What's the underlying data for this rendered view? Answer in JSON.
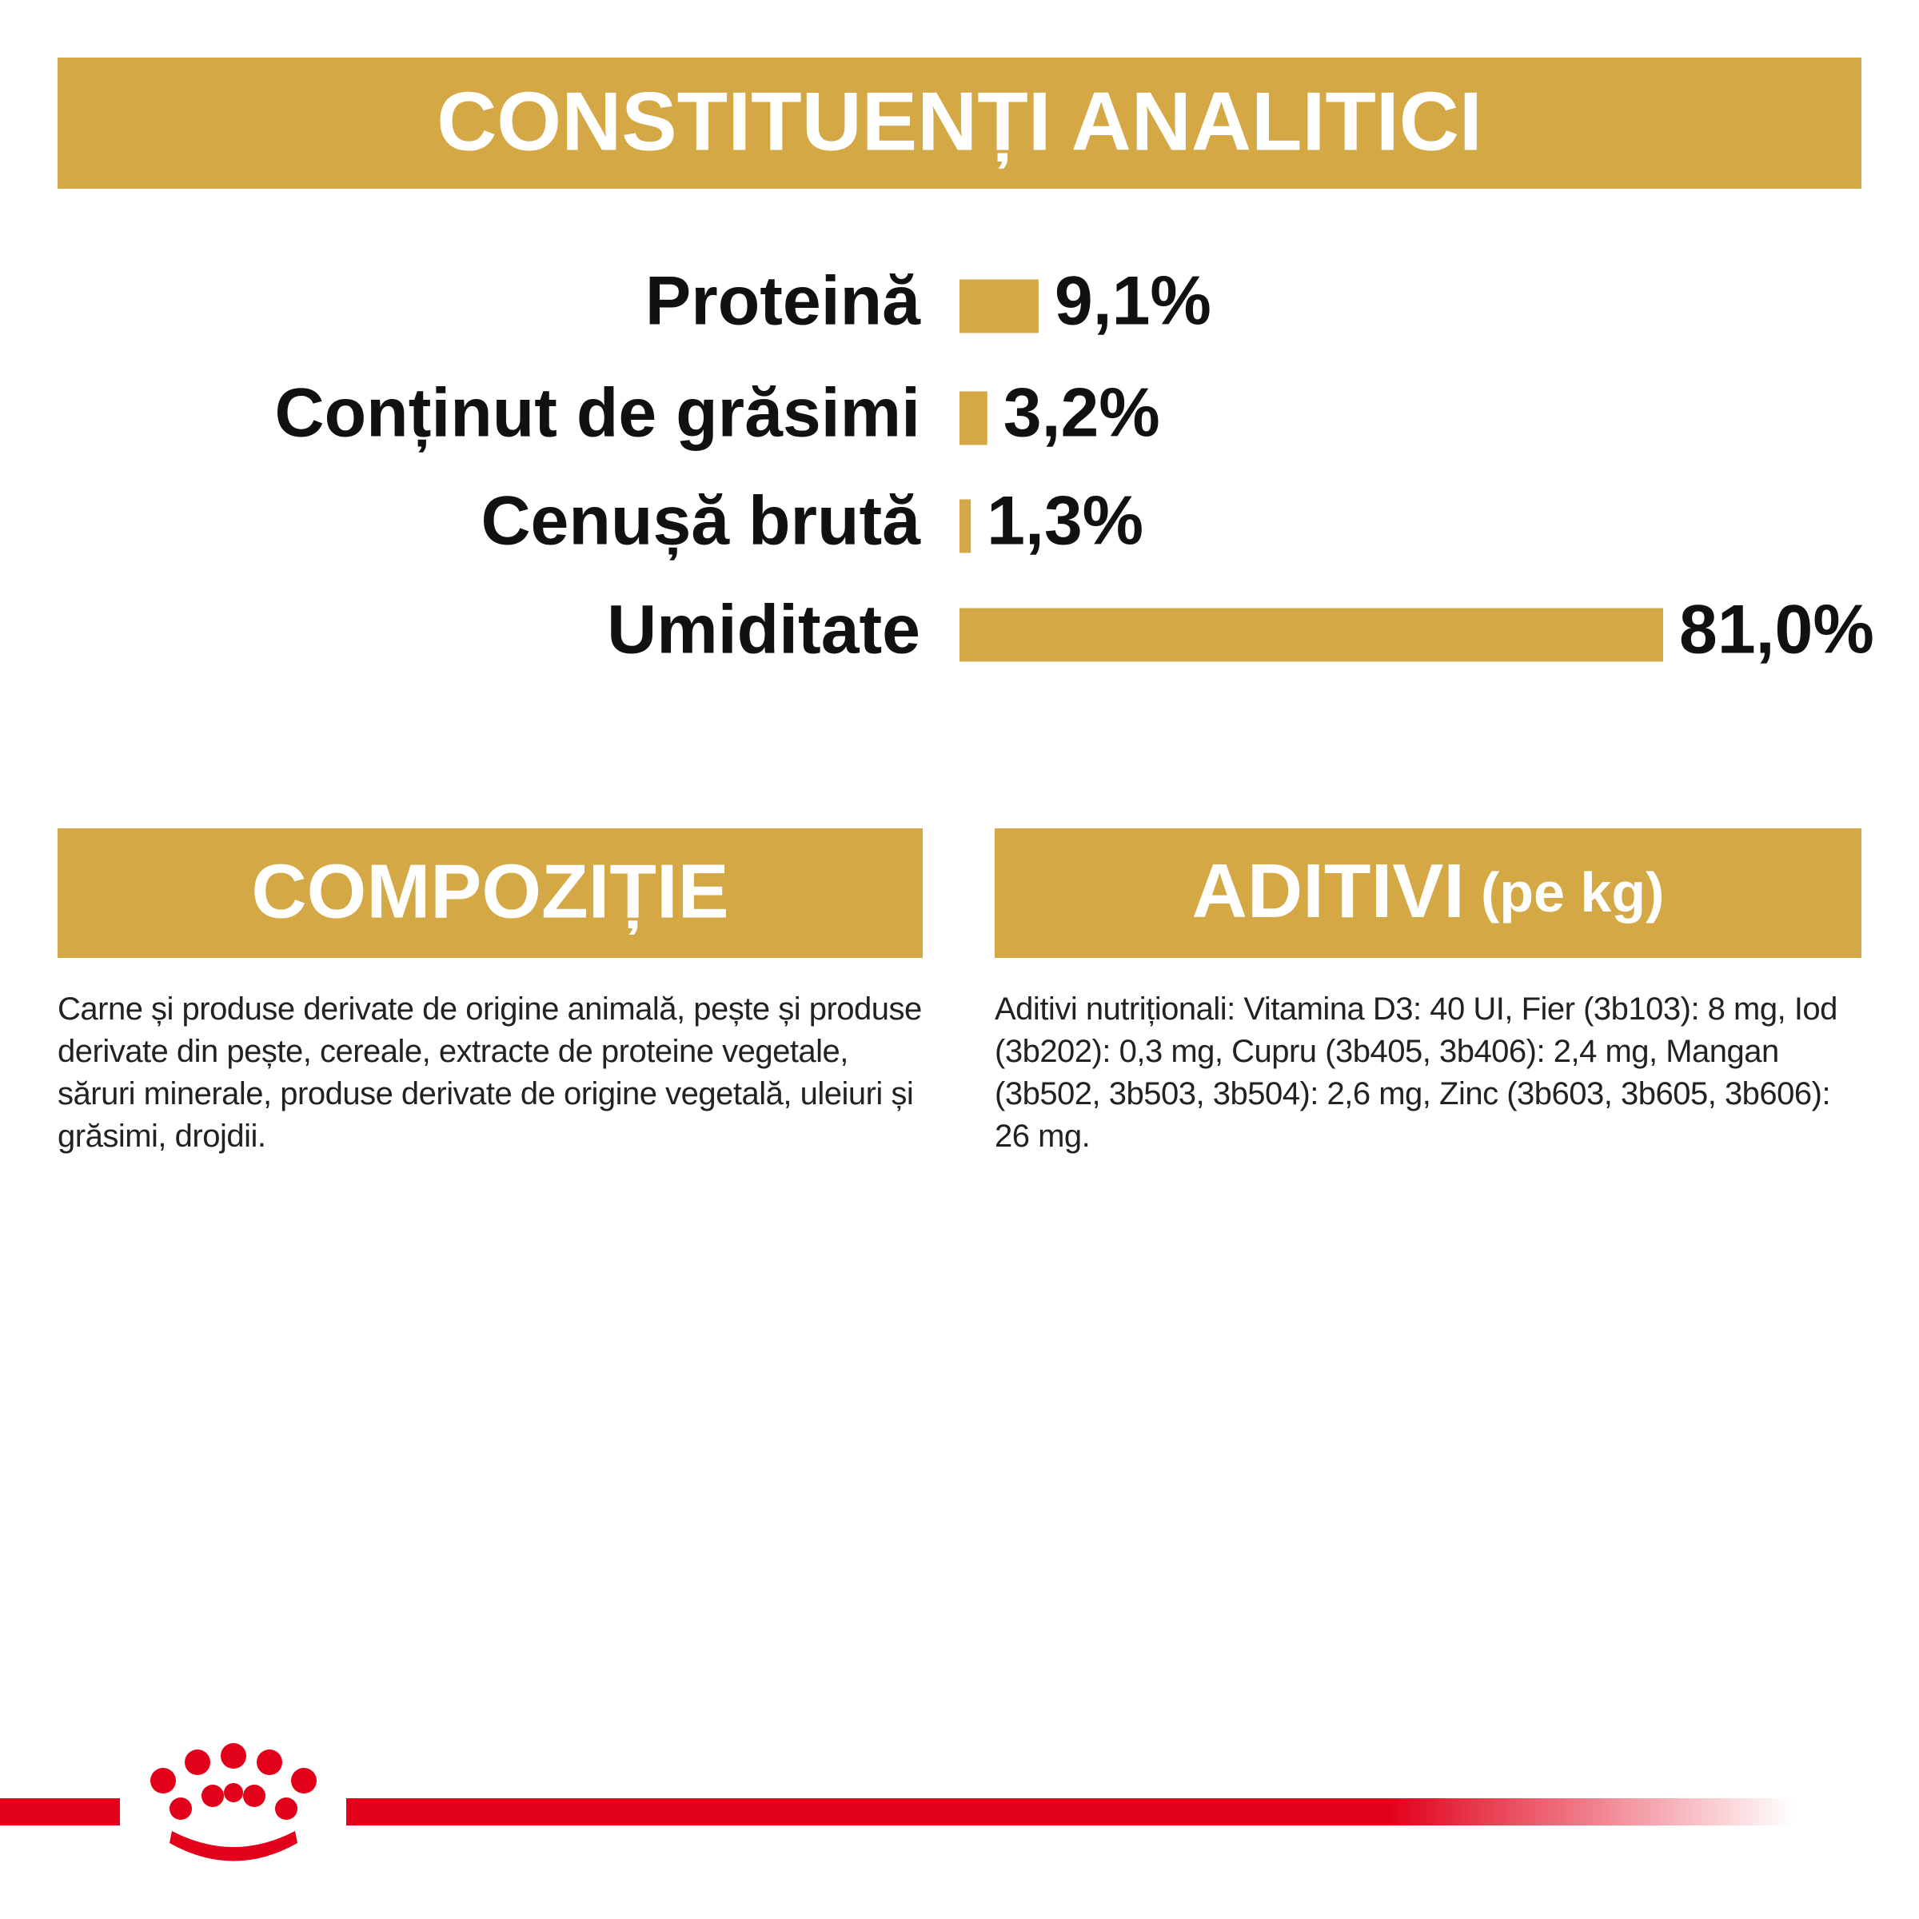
{
  "chart_data": {
    "type": "bar",
    "title": "CONSTITUENȚI ANALITICI",
    "categories": [
      "Proteină",
      "Conținut de grăsimi",
      "Cenușă brută",
      "Umiditate"
    ],
    "values": [
      9.1,
      3.2,
      1.3,
      81.0
    ],
    "value_labels": [
      "9,1%",
      "3,2%",
      "1,3%",
      "81,0%"
    ],
    "color": "#d4a845"
  },
  "composition": {
    "title": "COMPOZIȚIE",
    "text": "Carne și produse derivate de origine animală, pește și produse derivate din pește, cereale, extracte de proteine vegetale, săruri minerale, produse derivate de origine vegetală, uleiuri și grăsimi, drojdii."
  },
  "additives": {
    "title": "ADITIVI",
    "title_note": "(pe kg)",
    "text": "Aditivi nutriționali: Vitamina D3: 40 UI, Fier (3b103): 8 mg, Iod (3b202): 0,3 mg, Cupru (3b405, 3b406): 2,4 mg, Mangan (3b502, 3b503, 3b504): 2,6 mg, Zinc (3b603, 3b605, 3b606): 26 mg."
  }
}
